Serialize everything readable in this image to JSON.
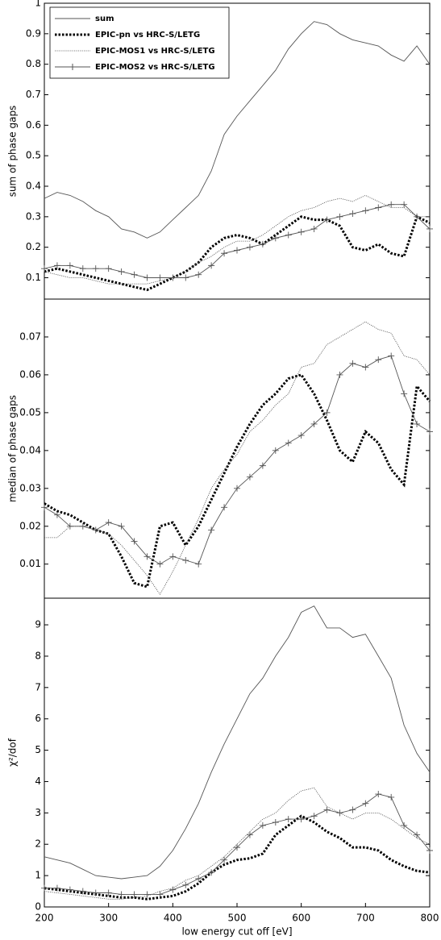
{
  "chart_data": [
    {
      "type": "line",
      "ylabel": "sum of phase gaps",
      "legend": "upper left",
      "x": [
        200,
        220,
        240,
        260,
        280,
        300,
        320,
        340,
        360,
        380,
        400,
        420,
        440,
        460,
        480,
        500,
        520,
        540,
        560,
        580,
        600,
        620,
        640,
        660,
        680,
        700,
        720,
        740,
        760,
        780,
        800
      ],
      "xlim": [
        200,
        800
      ],
      "ylim": [
        0.03,
        1
      ],
      "yticks": [
        0.1,
        0.2,
        0.3,
        0.4,
        0.5,
        0.6,
        0.7,
        0.8,
        0.9,
        1
      ],
      "series": [
        {
          "name": "sum",
          "color": "#555555",
          "style": "solid",
          "values": [
            0.36,
            0.38,
            0.37,
            0.35,
            0.32,
            0.3,
            0.26,
            0.25,
            0.23,
            0.25,
            0.29,
            0.33,
            0.37,
            0.45,
            0.57,
            0.63,
            0.68,
            0.73,
            0.78,
            0.85,
            0.9,
            0.94,
            0.93,
            0.9,
            0.88,
            0.87,
            0.86,
            0.83,
            0.81,
            0.86,
            0.8
          ]
        },
        {
          "name": "EPIC-pn vs HRC-S/LETG",
          "color": "#000000",
          "style": "dotted-thick",
          "values": [
            0.12,
            0.13,
            0.12,
            0.11,
            0.1,
            0.09,
            0.08,
            0.07,
            0.06,
            0.08,
            0.1,
            0.12,
            0.15,
            0.2,
            0.23,
            0.24,
            0.23,
            0.21,
            0.24,
            0.27,
            0.3,
            0.29,
            0.29,
            0.27,
            0.2,
            0.19,
            0.21,
            0.18,
            0.17,
            0.3,
            0.28
          ]
        },
        {
          "name": "EPIC-MOS1 vs HRC-S/LETG",
          "color": "#555555",
          "style": "dotted",
          "values": [
            0.12,
            0.11,
            0.1,
            0.1,
            0.09,
            0.08,
            0.08,
            0.08,
            0.08,
            0.09,
            0.1,
            0.12,
            0.15,
            0.17,
            0.2,
            0.22,
            0.22,
            0.24,
            0.27,
            0.3,
            0.32,
            0.33,
            0.35,
            0.36,
            0.35,
            0.37,
            0.35,
            0.33,
            0.33,
            0.3,
            0.3
          ]
        },
        {
          "name": "EPIC-MOS2 vs HRC-S/LETG",
          "color": "#555555",
          "style": "plus",
          "values": [
            0.13,
            0.14,
            0.14,
            0.13,
            0.13,
            0.13,
            0.12,
            0.11,
            0.1,
            0.1,
            0.1,
            0.1,
            0.11,
            0.14,
            0.18,
            0.19,
            0.2,
            0.21,
            0.23,
            0.24,
            0.25,
            0.26,
            0.29,
            0.3,
            0.31,
            0.32,
            0.33,
            0.34,
            0.34,
            0.3,
            0.26
          ]
        }
      ]
    },
    {
      "type": "line",
      "ylabel": "median of phase gaps",
      "x": [
        200,
        220,
        240,
        260,
        280,
        300,
        320,
        340,
        360,
        380,
        400,
        420,
        440,
        460,
        480,
        500,
        520,
        540,
        560,
        580,
        600,
        620,
        640,
        660,
        680,
        700,
        720,
        740,
        760,
        780,
        800
      ],
      "xlim": [
        200,
        800
      ],
      "ylim": [
        0.001,
        0.08
      ],
      "yticks": [
        0.01,
        0.02,
        0.03,
        0.04,
        0.05,
        0.06,
        0.07
      ],
      "series": [
        {
          "color": "#000000",
          "style": "dotted-thick",
          "values": [
            0.026,
            0.024,
            0.023,
            0.021,
            0.019,
            0.018,
            0.012,
            0.005,
            0.004,
            0.02,
            0.021,
            0.015,
            0.02,
            0.027,
            0.034,
            0.041,
            0.047,
            0.052,
            0.055,
            0.059,
            0.06,
            0.055,
            0.048,
            0.04,
            0.037,
            0.045,
            0.042,
            0.035,
            0.031,
            0.057,
            0.053
          ]
        },
        {
          "color": "#555555",
          "style": "dotted",
          "values": [
            0.017,
            0.017,
            0.02,
            0.02,
            0.019,
            0.018,
            0.015,
            0.011,
            0.007,
            0.002,
            0.008,
            0.015,
            0.022,
            0.03,
            0.035,
            0.039,
            0.045,
            0.048,
            0.052,
            0.055,
            0.062,
            0.063,
            0.068,
            0.07,
            0.072,
            0.074,
            0.072,
            0.071,
            0.065,
            0.064,
            0.06
          ]
        },
        {
          "color": "#555555",
          "style": "plus",
          "values": [
            0.025,
            0.023,
            0.02,
            0.02,
            0.019,
            0.021,
            0.02,
            0.016,
            0.012,
            0.01,
            0.012,
            0.011,
            0.01,
            0.019,
            0.025,
            0.03,
            0.033,
            0.036,
            0.04,
            0.042,
            0.044,
            0.047,
            0.05,
            0.06,
            0.063,
            0.062,
            0.064,
            0.065,
            0.055,
            0.047,
            0.045
          ]
        }
      ]
    },
    {
      "type": "line",
      "ylabel": "χ²/dof",
      "xlabel": "low energy cut off [eV]",
      "x": [
        200,
        220,
        240,
        260,
        280,
        300,
        320,
        340,
        360,
        380,
        400,
        420,
        440,
        460,
        480,
        500,
        520,
        540,
        560,
        580,
        600,
        620,
        640,
        660,
        680,
        700,
        720,
        740,
        760,
        780,
        800
      ],
      "xlim": [
        200,
        800
      ],
      "ylim": [
        0,
        9.85
      ],
      "xticks": [
        200,
        300,
        400,
        500,
        600,
        700,
        800
      ],
      "yticks": [
        0,
        1,
        2,
        3,
        4,
        5,
        6,
        7,
        8,
        9
      ],
      "series": [
        {
          "color": "#555555",
          "style": "solid",
          "values": [
            1.6,
            1.5,
            1.4,
            1.2,
            1.0,
            0.95,
            0.9,
            0.95,
            1.0,
            1.3,
            1.8,
            2.5,
            3.3,
            4.3,
            5.2,
            6.0,
            6.8,
            7.3,
            8.0,
            8.6,
            9.4,
            9.6,
            8.9,
            8.9,
            8.6,
            8.7,
            8.0,
            7.3,
            5.8,
            4.9,
            4.3
          ]
        },
        {
          "color": "#000000",
          "style": "dotted-thick",
          "values": [
            0.6,
            0.55,
            0.5,
            0.45,
            0.4,
            0.35,
            0.3,
            0.3,
            0.25,
            0.3,
            0.35,
            0.5,
            0.75,
            1.1,
            1.35,
            1.5,
            1.55,
            1.7,
            2.3,
            2.6,
            2.9,
            2.7,
            2.4,
            2.2,
            1.9,
            1.9,
            1.8,
            1.5,
            1.3,
            1.15,
            1.1
          ]
        },
        {
          "color": "#555555",
          "style": "dotted",
          "values": [
            0.5,
            0.45,
            0.4,
            0.35,
            0.3,
            0.25,
            0.25,
            0.3,
            0.35,
            0.5,
            0.6,
            0.85,
            1.0,
            1.3,
            1.6,
            2.0,
            2.4,
            2.8,
            3.0,
            3.4,
            3.7,
            3.8,
            3.2,
            3.0,
            2.8,
            3.0,
            3.0,
            2.8,
            2.5,
            2.2,
            2.0
          ]
        },
        {
          "color": "#555555",
          "style": "plus",
          "values": [
            0.6,
            0.6,
            0.55,
            0.5,
            0.45,
            0.45,
            0.4,
            0.4,
            0.4,
            0.4,
            0.55,
            0.7,
            0.9,
            1.1,
            1.5,
            1.9,
            2.3,
            2.6,
            2.7,
            2.8,
            2.8,
            2.9,
            3.1,
            3.0,
            3.1,
            3.3,
            3.6,
            3.5,
            2.6,
            2.3,
            1.8
          ]
        }
      ]
    }
  ]
}
